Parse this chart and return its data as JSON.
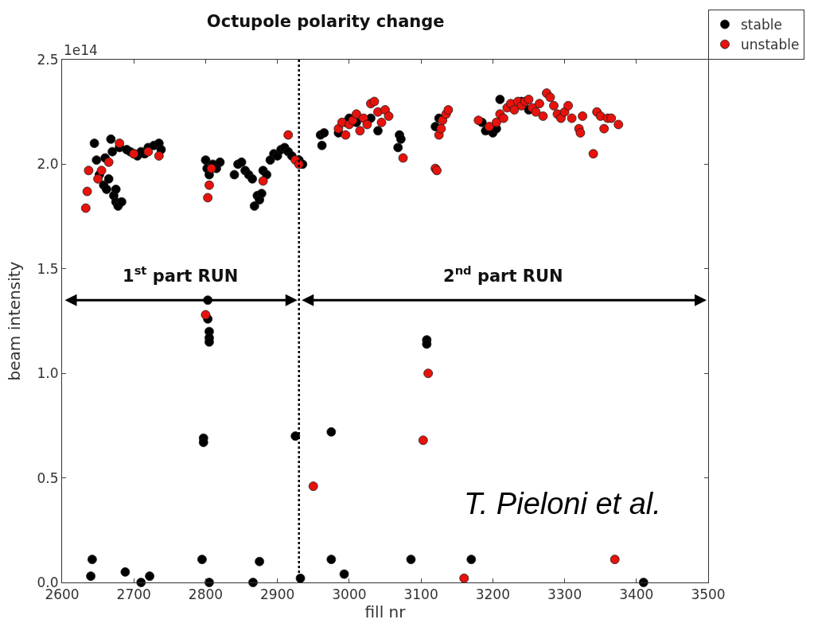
{
  "chart_data": {
    "type": "scatter",
    "title": "Octupole polarity change",
    "xlabel": "fill nr",
    "ylabel": "beam intensity",
    "xlim": [
      2600,
      3500
    ],
    "xticks": [
      2600,
      2700,
      2800,
      2900,
      3000,
      3100,
      3200,
      3300,
      3400,
      3500
    ],
    "ylim": [
      0,
      2.5
    ],
    "yticks": [
      {
        "value": 0,
        "label": "0.0"
      },
      0.5,
      {
        "value": 1,
        "label": "1.0"
      },
      1.5,
      {
        "value": 2,
        "label": "2.0"
      },
      2.5
    ],
    "legend": "top right",
    "marker": "circle",
    "ref_lines": [
      {
        "axis": "x",
        "value": 2930,
        "label": null,
        "color": "#000000",
        "line_style": "dotted"
      }
    ],
    "annotations": [
      "1e14",
      "T. Pieloni et al.",
      "1$^{st}$ part RUN",
      "2$^{nd}$ part RUN"
    ],
    "series": [
      {
        "name": "stable",
        "color": "#000000",
        "x": [
          2640,
          2642,
          2688,
          2710,
          2722,
          2795,
          2805,
          2866,
          2875,
          2932,
          2975,
          2993,
          3086,
          3170,
          3410,
          2797,
          2797,
          2803,
          2803,
          2805,
          2805,
          2805,
          2925,
          2975,
          3108,
          3108,
          2645,
          2648,
          2652,
          2658,
          2662,
          2665,
          2668,
          2670,
          2672,
          2675,
          2678,
          2683,
          2680,
          2690,
          2695,
          2700,
          2705,
          2710,
          2715,
          2720,
          2728,
          2735,
          2738,
          2675,
          2660,
          2800,
          2802,
          2805,
          2810,
          2815,
          2820,
          2840,
          2845,
          2850,
          2855,
          2860,
          2865,
          2868,
          2872,
          2875,
          2878,
          2880,
          2885,
          2890,
          2895,
          2900,
          2905,
          2910,
          2915,
          2920,
          2930,
          2935,
          2960,
          2962,
          2965,
          2985,
          2995,
          3000,
          3010,
          3030,
          3040,
          3070,
          3068,
          3072,
          3120,
          3125,
          3185,
          3190,
          3200,
          3205,
          3210,
          3240,
          3250
        ],
        "values": [
          0.03,
          0.11,
          0.05,
          0.0,
          0.03,
          0.11,
          0.0,
          0.0,
          0.1,
          0.02,
          0.11,
          0.04,
          0.11,
          0.11,
          0.0,
          0.69,
          0.67,
          1.35,
          1.26,
          1.2,
          1.17,
          1.15,
          0.7,
          0.72,
          1.16,
          1.14,
          2.1,
          2.02,
          1.95,
          1.9,
          1.88,
          1.93,
          2.12,
          2.06,
          1.85,
          1.82,
          1.8,
          1.82,
          2.08,
          2.07,
          2.06,
          2.05,
          2.04,
          2.06,
          2.05,
          2.08,
          2.09,
          2.1,
          2.07,
          1.88,
          2.03,
          2.02,
          1.98,
          1.95,
          2.0,
          1.98,
          2.01,
          1.95,
          2.0,
          2.01,
          1.97,
          1.95,
          1.93,
          1.8,
          1.85,
          1.83,
          1.86,
          1.97,
          1.95,
          2.02,
          2.05,
          2.04,
          2.07,
          2.08,
          2.06,
          2.04,
          2.02,
          2.0,
          2.14,
          2.09,
          2.15,
          2.15,
          2.2,
          2.22,
          2.2,
          2.22,
          2.16,
          2.14,
          2.08,
          2.12,
          2.18,
          2.22,
          2.2,
          2.16,
          2.15,
          2.17,
          2.31,
          2.3,
          2.26
        ]
      },
      {
        "name": "unstable",
        "color": "#e8120c",
        "x": [
          2633,
          2635,
          2637,
          2650,
          2655,
          2665,
          2680,
          2700,
          2720,
          2735,
          2803,
          2805,
          2808,
          2880,
          2915,
          2925,
          2930,
          2800,
          2950,
          3103,
          3110,
          3160,
          3370,
          2985,
          2990,
          2995,
          3000,
          3005,
          3010,
          3015,
          3020,
          3025,
          3030,
          3035,
          3040,
          3045,
          3050,
          3055,
          3075,
          3120,
          3122,
          3125,
          3128,
          3130,
          3135,
          3138,
          3180,
          3195,
          3205,
          3210,
          3215,
          3220,
          3225,
          3230,
          3235,
          3240,
          3245,
          3250,
          3255,
          3260,
          3265,
          3270,
          3275,
          3280,
          3285,
          3290,
          3295,
          3300,
          3305,
          3310,
          3320,
          3322,
          3325,
          3340,
          3345,
          3350,
          3355,
          3360,
          3365,
          3375
        ],
        "values": [
          1.79,
          1.87,
          1.97,
          1.93,
          1.97,
          2.01,
          2.1,
          2.05,
          2.06,
          2.04,
          1.84,
          1.9,
          1.98,
          1.92,
          2.14,
          2.02,
          2.0,
          1.28,
          0.46,
          0.68,
          1.0,
          0.02,
          0.11,
          2.17,
          2.2,
          2.14,
          2.19,
          2.21,
          2.24,
          2.16,
          2.22,
          2.19,
          2.29,
          2.3,
          2.25,
          2.2,
          2.26,
          2.23,
          2.03,
          1.98,
          1.97,
          2.14,
          2.17,
          2.21,
          2.24,
          2.26,
          2.21,
          2.18,
          2.2,
          2.24,
          2.22,
          2.27,
          2.29,
          2.26,
          2.3,
          2.28,
          2.3,
          2.31,
          2.27,
          2.25,
          2.29,
          2.23,
          2.34,
          2.32,
          2.28,
          2.24,
          2.22,
          2.25,
          2.28,
          2.22,
          2.17,
          2.15,
          2.23,
          2.05,
          2.25,
          2.23,
          2.17,
          2.22,
          2.22,
          2.19
        ]
      }
    ]
  }
}
